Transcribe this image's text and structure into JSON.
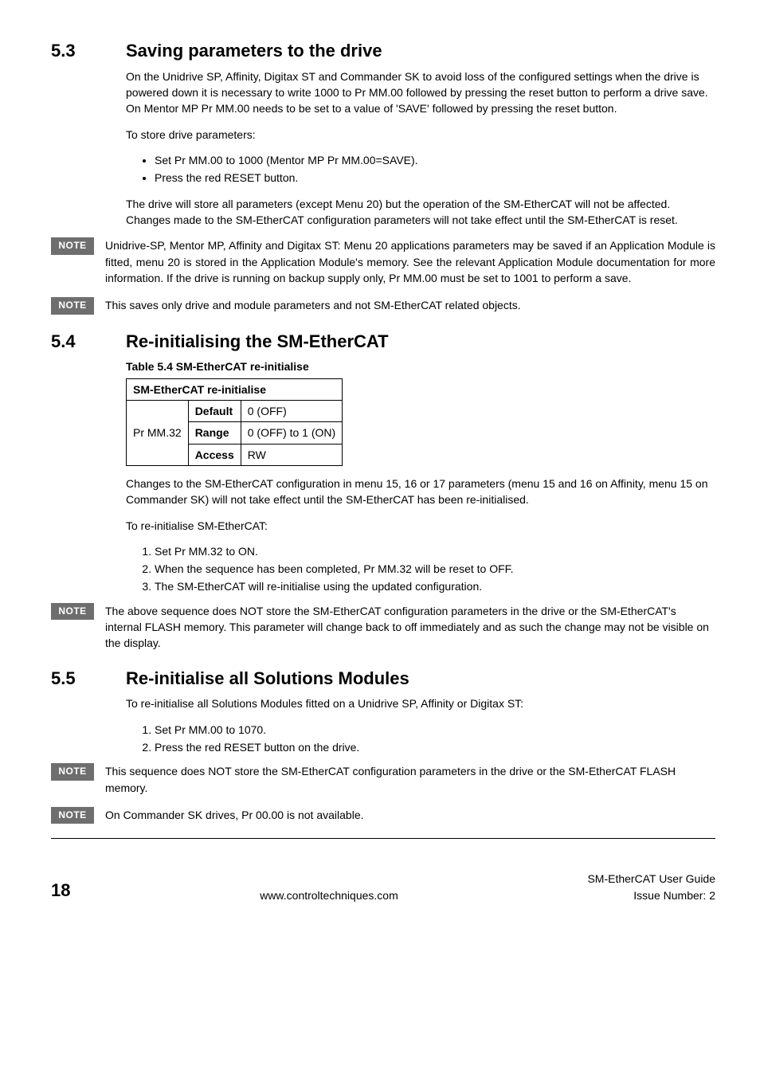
{
  "sections": {
    "s53": {
      "num": "5.3",
      "title": "Saving parameters to the drive",
      "p1": "On the Unidrive SP, Affinity, Digitax ST and Commander SK to avoid loss of the configured settings when the drive is powered down it is necessary to write 1000 to Pr MM.00 followed by pressing the reset button to perform a drive save. On Mentor MP Pr MM.00 needs to be set to a value of 'SAVE' followed by pressing the reset button.",
      "p2": "To store drive parameters:",
      "bullets": [
        "Set Pr MM.00 to 1000 (Mentor MP Pr MM.00=SAVE).",
        "Press the red RESET button."
      ],
      "p3": "The drive will store all parameters (except Menu 20) but the operation of the SM-EtherCAT will not be affected. Changes made to the SM-EtherCAT configuration parameters will not take effect until the SM-EtherCAT is reset.",
      "note1": "Unidrive-SP, Mentor MP, Affinity and Digitax ST: Menu 20 applications parameters may be saved if an Application Module is fitted, menu 20 is stored in the Application Module's memory. See the relevant Application Module documentation for more information. If the drive is running on backup supply only, Pr MM.00 must be set to 1001 to perform a save.",
      "note2": "This saves only drive and module parameters and not SM-EtherCAT related objects."
    },
    "s54": {
      "num": "5.4",
      "title": "Re-initialising the SM-EtherCAT",
      "table_caption": "Table 5.4  SM-EtherCAT re-initialise",
      "table": {
        "header": "SM-EtherCAT re-initialise",
        "row_label": "Pr MM.32",
        "rows": [
          {
            "k": "Default",
            "v": "0 (OFF)"
          },
          {
            "k": "Range",
            "v": "0 (OFF) to 1 (ON)"
          },
          {
            "k": "Access",
            "v": "RW"
          }
        ]
      },
      "p1": "Changes to the SM-EtherCAT configuration in menu 15, 16 or 17 parameters (menu 15 and 16 on Affinity, menu 15 on Commander SK) will not take effect until the SM-EtherCAT has been re-initialised.",
      "p2": "To re-initialise SM-EtherCAT:",
      "steps": [
        "Set Pr MM.32 to ON.",
        "When the sequence has been completed, Pr MM.32  will be reset to OFF.",
        "The SM-EtherCAT will re-initialise using the updated configuration."
      ],
      "note1": "The above sequence does NOT store the SM-EtherCAT configuration parameters in the drive or the SM-EtherCAT's internal FLASH memory. This parameter will change back to off immediately and as such the change may not be visible on the display."
    },
    "s55": {
      "num": "5.5",
      "title": "Re-initialise all Solutions Modules",
      "p1": "To re-initialise all Solutions Modules fitted on a Unidrive SP, Affinity or Digitax ST:",
      "steps": [
        "Set Pr MM.00 to 1070.",
        "Press the red RESET button on the drive."
      ],
      "note1": "This sequence does NOT store the SM-EtherCAT configuration parameters in the drive or the SM-EtherCAT FLASH memory.",
      "note2": "On Commander SK drives, Pr 00.00 is not available."
    }
  },
  "note_label": "NOTE",
  "footer": {
    "page": "18",
    "center": "www.controltechniques.com",
    "right1": "SM-EtherCAT User Guide",
    "right2": "Issue Number:  2"
  },
  "colors": {
    "note_bg": "#6e6e6e",
    "note_fg": "#ffffff",
    "text": "#000000",
    "bg": "#ffffff"
  }
}
